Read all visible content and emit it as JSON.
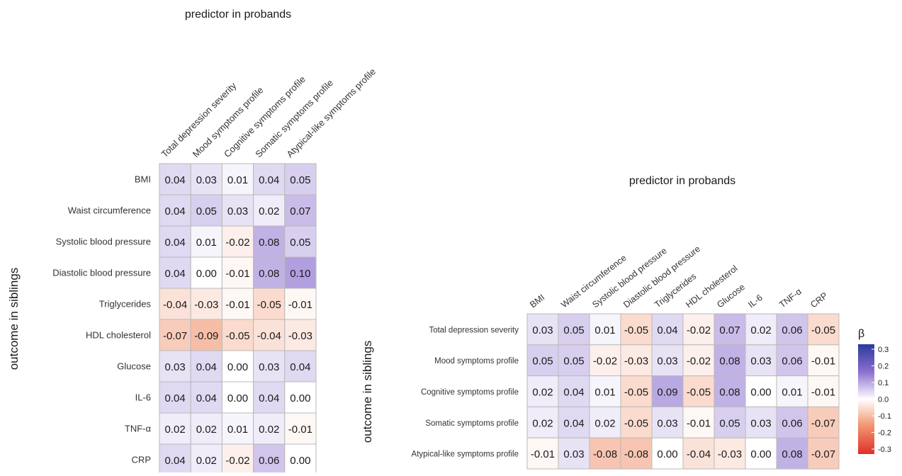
{
  "chart_data": [
    {
      "type": "heatmap",
      "title": "predictor in probands",
      "ylabel": "outcome in siblings",
      "x": [
        "Total depression severity",
        "Mood symptoms profile",
        "Cognitive symptoms profile",
        "Somatic symptoms profile",
        "Atypical-like symptoms profile"
      ],
      "y": [
        "BMI",
        "Waist circumference",
        "Systolic blood pressure",
        "Diastolic blood pressure",
        "Triglycerides",
        "HDL cholesterol",
        "Glucose",
        "IL-6",
        "TNF-α",
        "CRP"
      ],
      "values": [
        [
          "0.04",
          "0.03",
          "0.01",
          "0.04",
          "0.05"
        ],
        [
          "0.04",
          "0.05",
          "0.03",
          "0.02",
          "0.07"
        ],
        [
          "0.04",
          "0.01",
          "-0.02",
          "0.08",
          "0.05"
        ],
        [
          "0.04",
          "0.00",
          "-0.01",
          "0.08",
          "0.10"
        ],
        [
          "-0.04",
          "-0.03",
          "-0.01",
          "-0.05",
          "-0.01"
        ],
        [
          "-0.07",
          "-0.09",
          "-0.05",
          "-0.04",
          "-0.03"
        ],
        [
          "0.03",
          "0.04",
          "0.00",
          "0.03",
          "0.04"
        ],
        [
          "0.04",
          "0.04",
          "0.00",
          "0.04",
          "0.00"
        ],
        [
          "0.02",
          "0.02",
          "0.01",
          "0.02",
          "-0.01"
        ],
        [
          "0.04",
          "0.02",
          "-0.02",
          "0.06",
          "0.00"
        ]
      ],
      "color_range": [
        -0.3,
        0.3
      ]
    },
    {
      "type": "heatmap",
      "title": "predictor in probands",
      "ylabel": "outcome in siblings",
      "x": [
        "BMI",
        "Waist circumference",
        "Systolic blood pressure",
        "Diastolic blood pressure",
        "Triglycerides",
        "HDL cholesterol",
        "Glucose",
        "IL-6",
        "TNF-α",
        "CRP"
      ],
      "y": [
        "Total depression severity",
        "Mood symptoms profile",
        "Cognitive symptoms profile",
        "Somatic symptoms profile",
        "Atypical-like symptoms profile"
      ],
      "values": [
        [
          "0.03",
          "0.05",
          "0.01",
          "-0.05",
          "0.04",
          "-0.02",
          "0.07",
          "0.02",
          "0.06",
          "-0.05"
        ],
        [
          "0.05",
          "0.05",
          "-0.02",
          "-0.03",
          "0.03",
          "-0.02",
          "0.08",
          "0.03",
          "0.06",
          "-0.01"
        ],
        [
          "0.02",
          "0.04",
          "0.01",
          "-0.05",
          "0.09",
          "-0.05",
          "0.08",
          "0.00",
          "0.01",
          "-0.01"
        ],
        [
          "0.02",
          "0.04",
          "0.02",
          "-0.05",
          "0.03",
          "-0.01",
          "0.05",
          "0.03",
          "0.06",
          "-0.07"
        ],
        [
          "-0.01",
          "0.03",
          "-0.08",
          "-0.08",
          "0.00",
          "-0.04",
          "-0.03",
          "0.00",
          "0.08",
          "-0.07"
        ]
      ],
      "color_range": [
        -0.3,
        0.3
      ]
    }
  ],
  "legend": {
    "title": "β",
    "ticks": [
      "0.3",
      "0.2",
      "0.1",
      "0.0",
      "-0.1",
      "-0.2",
      "-0.3"
    ],
    "colors": {
      "high": "#2b3a9c",
      "mid_high": "#8b6fcf",
      "mid": "#ffffff",
      "mid_low": "#f0926d",
      "low": "#e0302a"
    }
  }
}
